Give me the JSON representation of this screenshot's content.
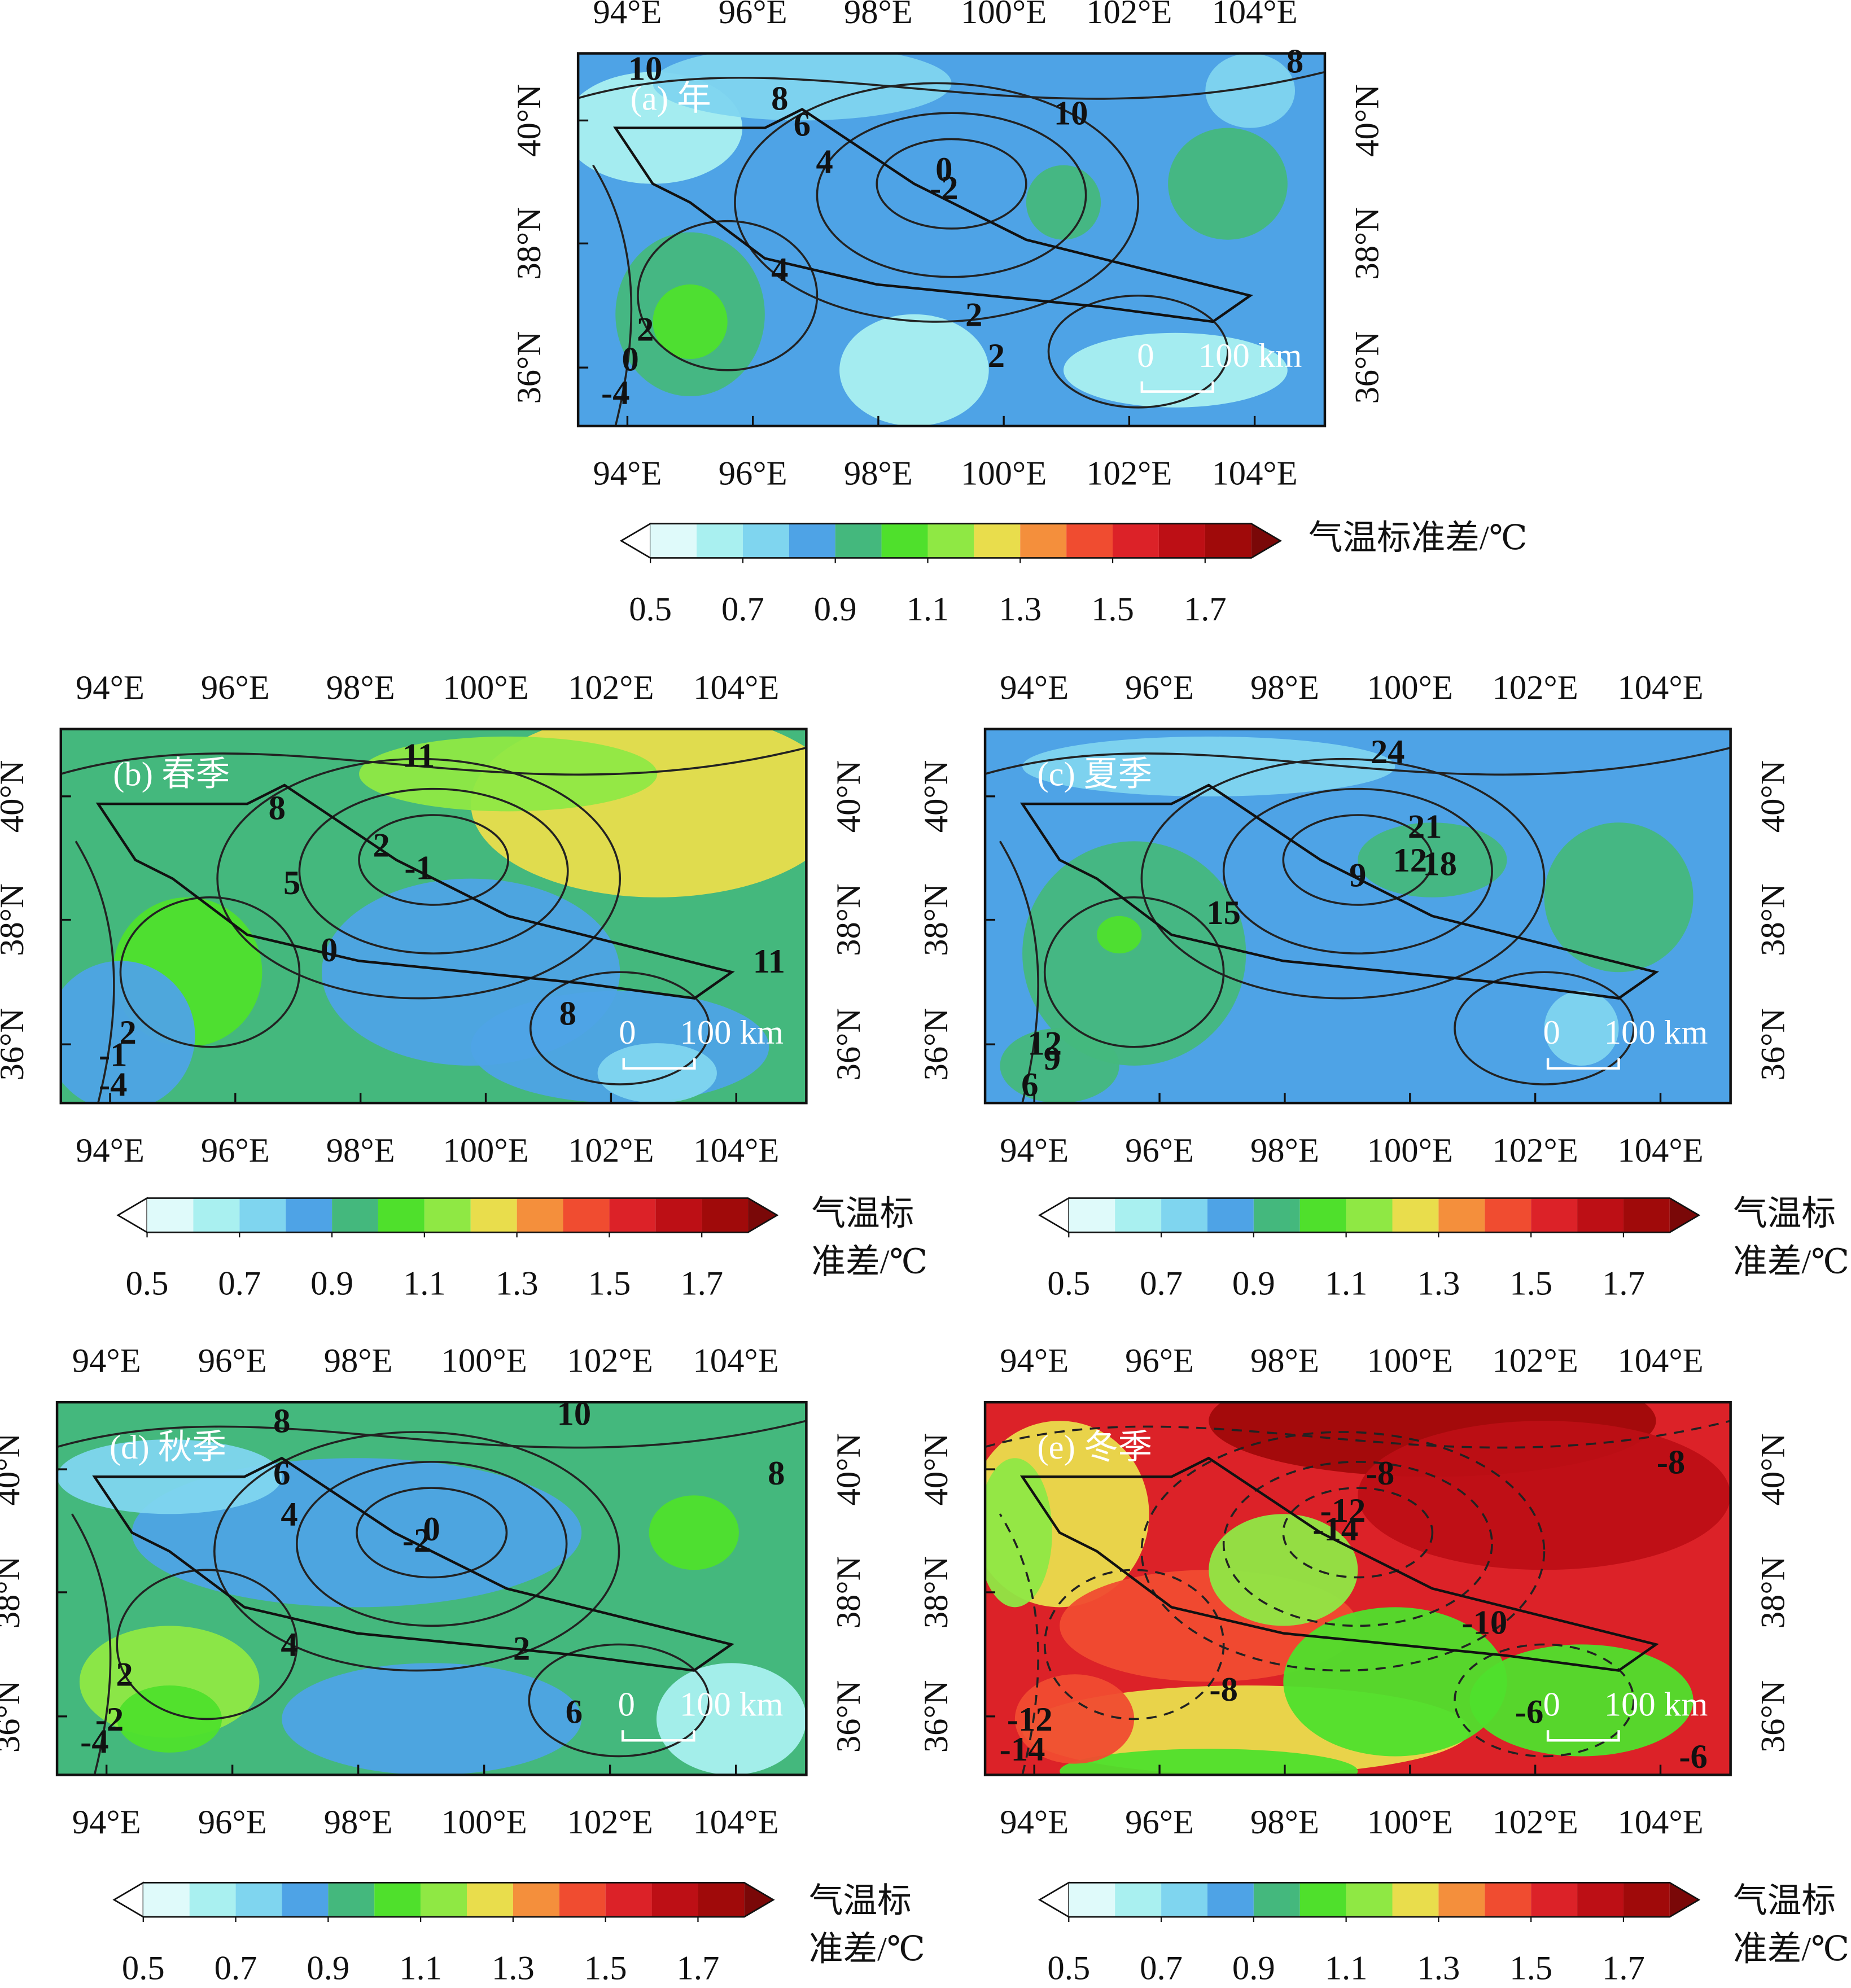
{
  "lon_labels": [
    "94°E",
    "96°E",
    "98°E",
    "100°E",
    "102°E",
    "104°E"
  ],
  "lat_labels": [
    "40°N",
    "38°N",
    "36°N"
  ],
  "colorbar": {
    "levels": [
      0.5,
      0.6,
      0.7,
      0.8,
      0.9,
      1.0,
      1.1,
      1.2,
      1.3,
      1.4,
      1.5,
      1.6,
      1.7,
      1.8
    ],
    "colors": [
      "#ffffff",
      "#dffafa",
      "#a9f0f0",
      "#7fd5ef",
      "#4ea3e6",
      "#44b87d",
      "#4fe02c",
      "#8fe844",
      "#e9dd4c",
      "#f48f3c",
      "#f04c30",
      "#dc2228",
      "#bd0f15",
      "#a00a0a",
      "#7a0808"
    ],
    "ticks": [
      0.5,
      0.7,
      0.9,
      1.1,
      1.3,
      1.5,
      1.7
    ]
  },
  "panels": [
    {
      "label": "(a) 年",
      "scale_bar": [
        "0",
        "100 km"
      ],
      "colorbar_title": [
        "气温标准差/℃"
      ],
      "contour_labels": [
        "10",
        "8",
        "6",
        "4",
        "0",
        "-2",
        "4",
        "2",
        "2",
        "2",
        "0",
        "-4",
        "10",
        "8"
      ]
    },
    {
      "label": "(b) 春季",
      "scale_bar": [
        "0",
        "100 km"
      ],
      "colorbar_title": [
        "气温标",
        "准差/℃"
      ],
      "contour_labels": [
        "11",
        "8",
        "2",
        "-1",
        "5",
        "0",
        "8",
        "2",
        "-1",
        "-4",
        "11"
      ]
    },
    {
      "label": "(c) 夏季",
      "scale_bar": [
        "0",
        "100 km"
      ],
      "colorbar_title": [
        "气温标",
        "准差/℃"
      ],
      "contour_labels": [
        "24",
        "21",
        "18",
        "12",
        "9",
        "15",
        "12",
        "9",
        "6"
      ]
    },
    {
      "label": "(d) 秋季",
      "scale_bar": [
        "0",
        "100 km"
      ],
      "colorbar_title": [
        "气温标",
        "准差/℃"
      ],
      "contour_labels": [
        "10",
        "8",
        "6",
        "4",
        "0",
        "-2",
        "4",
        "2",
        "6",
        "2",
        "-2",
        "-4",
        "8"
      ]
    },
    {
      "label": "(e) 冬季",
      "scale_bar": [
        "0",
        "100 km"
      ],
      "colorbar_title": [
        "气温标",
        "准差/℃"
      ],
      "contour_labels": [
        "-8",
        "-12",
        "-14",
        "-10",
        "-8",
        "-8",
        "-12",
        "-14",
        "-6",
        "-6"
      ]
    }
  ]
}
